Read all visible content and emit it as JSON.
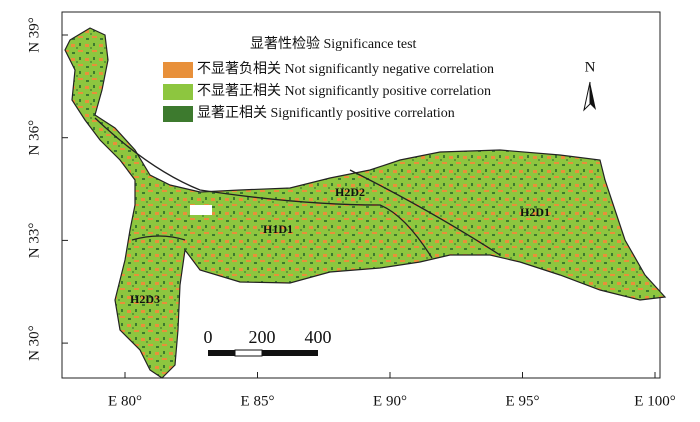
{
  "map": {
    "legend": {
      "title": "显著性检验 Significance test",
      "items": [
        {
          "label": "不显著负相关 Not significantly negative correlation",
          "color": "#e8903a"
        },
        {
          "label": "不显著正相关 Not significantly positive correlation",
          "color": "#8dc63f"
        },
        {
          "label": "显著正相关 Significantly positive correlation",
          "color": "#3d7a2e"
        }
      ]
    },
    "x_ticks": [
      "E 80°",
      "E 85°",
      "E 90°",
      "E 95°",
      "E 100°"
    ],
    "y_ticks": [
      "N 39°",
      "N 36°",
      "N 33°",
      "N 30°"
    ],
    "regions": [
      "H2D3",
      "H1D1",
      "H2D2",
      "H2D1"
    ],
    "north": "N",
    "scale_bar": [
      "0",
      "200",
      "400"
    ]
  }
}
